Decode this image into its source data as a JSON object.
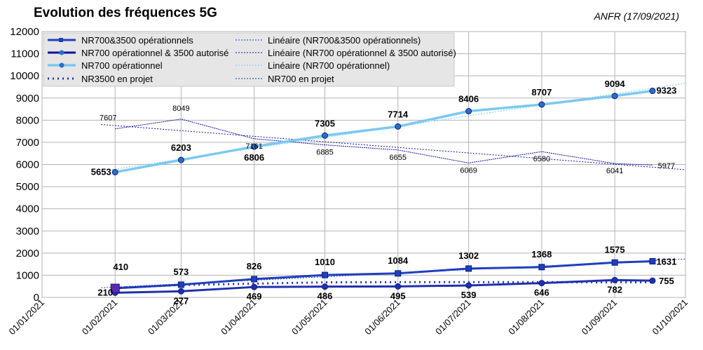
{
  "header": {
    "title": "Evolution des fréquences 5G",
    "source": "ANFR (17/09/2021)"
  },
  "chart_data": {
    "type": "line",
    "title": "Evolution des fréquences 5G",
    "xlabel": "",
    "ylabel": "",
    "ylim": [
      0,
      12000
    ],
    "yticks": [
      0,
      1000,
      2000,
      3000,
      4000,
      5000,
      6000,
      7000,
      8000,
      9000,
      10000,
      11000,
      12000
    ],
    "xticks": [
      "01/01/2021",
      "01/02/2021",
      "01/03/2021",
      "01/04/2021",
      "01/05/2021",
      "01/06/2021",
      "01/07/2021",
      "01/08/2021",
      "01/09/2021",
      "01/10/2021"
    ],
    "grid": true,
    "legend_position": "top-left",
    "series": [
      {
        "name": "NR700&3500 opérationnels",
        "color": "#1f3fbf",
        "style": "bold",
        "marker": "square",
        "points": [
          {
            "x": "01/02/2021",
            "y": 410
          },
          {
            "x": "01/03/2021",
            "y": 573
          },
          {
            "x": "01/04/2021",
            "y": 826
          },
          {
            "x": "01/05/2021",
            "y": 1010
          },
          {
            "x": "01/06/2021",
            "y": 1084
          },
          {
            "x": "01/07/2021",
            "y": 1302
          },
          {
            "x": "01/08/2021",
            "y": 1368
          },
          {
            "x": "01/09/2021",
            "y": 1575
          },
          {
            "x": "17/09/2021",
            "y": 1631
          }
        ]
      },
      {
        "name": "NR700 opérationnel & 3500 autorisé",
        "color": "#1010a0",
        "style": "thin-labels",
        "marker": "circle",
        "points": [
          {
            "x": "01/02/2021",
            "y": 7607
          },
          {
            "x": "01/03/2021",
            "y": 8049
          },
          {
            "x": "01/04/2021",
            "y": 7161
          },
          {
            "x": "01/05/2021",
            "y": 6885
          },
          {
            "x": "01/06/2021",
            "y": 6655
          },
          {
            "x": "01/07/2021",
            "y": 6069
          },
          {
            "x": "01/08/2021",
            "y": 6580
          },
          {
            "x": "01/09/2021",
            "y": 6041
          },
          {
            "x": "17/09/2021",
            "y": 5977
          }
        ]
      },
      {
        "name": "NR700 opérationnel",
        "color": "#7cc8f0",
        "style": "bold",
        "marker": "circle",
        "points": [
          {
            "x": "01/02/2021",
            "y": 5653
          },
          {
            "x": "01/03/2021",
            "y": 6203
          },
          {
            "x": "01/04/2021",
            "y": 6806
          },
          {
            "x": "01/05/2021",
            "y": 7305
          },
          {
            "x": "01/06/2021",
            "y": 7714
          },
          {
            "x": "01/07/2021",
            "y": 8406
          },
          {
            "x": "01/08/2021",
            "y": 8707
          },
          {
            "x": "01/09/2021",
            "y": 9094
          },
          {
            "x": "17/09/2021",
            "y": 9323
          }
        ]
      },
      {
        "name": "NR3500 en projet",
        "color": "#2233aa",
        "style": "dotted",
        "marker": "none",
        "points": [
          {
            "x": "01/02/2021",
            "y": 430
          },
          {
            "x": "01/03/2021",
            "y": 560
          },
          {
            "x": "01/04/2021",
            "y": 620
          },
          {
            "x": "01/05/2021",
            "y": 680
          },
          {
            "x": "01/06/2021",
            "y": 690
          },
          {
            "x": "01/07/2021",
            "y": 690
          },
          {
            "x": "01/08/2021",
            "y": 690
          },
          {
            "x": "01/09/2021",
            "y": 680
          },
          {
            "x": "17/09/2021",
            "y": 680
          }
        ]
      },
      {
        "name": "NR700 en projet",
        "color": "#2030b0",
        "style": "bold",
        "marker": "circle",
        "points": [
          {
            "x": "01/02/2021",
            "y": 210
          },
          {
            "x": "01/03/2021",
            "y": 277
          },
          {
            "x": "01/04/2021",
            "y": 469
          },
          {
            "x": "01/05/2021",
            "y": 486
          },
          {
            "x": "01/06/2021",
            "y": 495
          },
          {
            "x": "01/07/2021",
            "y": 539
          },
          {
            "x": "01/08/2021",
            "y": 646
          },
          {
            "x": "01/09/2021",
            "y": 782
          },
          {
            "x": "17/09/2021",
            "y": 755
          }
        ]
      }
    ],
    "trendlines": [
      {
        "name": "Linéaire (NR700&3500 opérationnels)",
        "color": "#1f3fbf"
      },
      {
        "name": "Linéaire (NR700 opérationnel & 3500 autorisé)",
        "color": "#1010a0"
      },
      {
        "name": "Linéaire (NR700 opérationnel)",
        "color": "#7cc8f0"
      }
    ]
  }
}
